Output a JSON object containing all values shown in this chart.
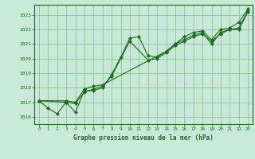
{
  "title": "Graphe pression niveau de la mer (hPa)",
  "xlabel_hours": [
    0,
    1,
    2,
    3,
    4,
    5,
    6,
    7,
    8,
    9,
    10,
    11,
    12,
    13,
    14,
    15,
    16,
    17,
    18,
    19,
    20,
    21,
    22,
    23
  ],
  "ylim": [
    1015.5,
    1023.7
  ],
  "xlim": [
    -0.5,
    23.5
  ],
  "yticks": [
    1016,
    1017,
    1018,
    1019,
    1020,
    1021,
    1022,
    1023
  ],
  "line_color": "#1a6b1a",
  "bg_color": "#c8e8d8",
  "grid_color": "#88bb88",
  "series": [
    [
      1017.1,
      1016.6,
      1016.2,
      1017.0,
      1016.3,
      1017.8,
      1017.8,
      1018.0,
      1018.9,
      1020.1,
      1021.4,
      1021.5,
      1020.2,
      1020.1,
      1020.5,
      1021.0,
      1021.3,
      1021.6,
      1021.8,
      1021.0,
      1021.8,
      1022.0,
      1022.1,
      1023.3
    ],
    [
      1017.1,
      null,
      null,
      1017.0,
      1016.9,
      1017.7,
      1017.9,
      1018.1,
      1018.8,
      null,
      1021.2,
      null,
      1019.9,
      1020.0,
      1020.4,
      1020.9,
      1021.2,
      1021.5,
      1021.7,
      1021.2,
      1021.7,
      1022.0,
      1022.0,
      1023.2
    ],
    [
      1017.1,
      null,
      null,
      1017.1,
      1017.0,
      1017.9,
      1018.1,
      1018.2,
      null,
      null,
      null,
      null,
      null,
      null,
      1020.5,
      1021.0,
      1021.5,
      1021.8,
      1021.9,
      1021.3,
      1022.0,
      1022.1,
      1022.5,
      1023.4
    ]
  ]
}
